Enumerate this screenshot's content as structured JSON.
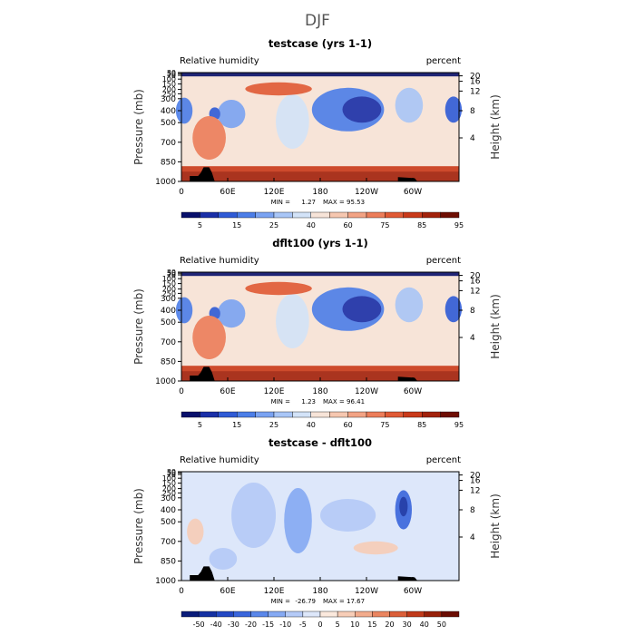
{
  "figure": {
    "title": "DJF"
  },
  "chart_data": [
    {
      "type": "heatmap",
      "title": "testcase (yrs 1-1)",
      "left_label": "Relative humidity",
      "right_label": "percent",
      "ylabel": "Pressure (mb)",
      "ylabel_right": "Height (km)",
      "x_ticks": [
        "0",
        "60E",
        "120E",
        "180",
        "120W",
        "60W"
      ],
      "y_ticks": [
        "30",
        "50",
        "70",
        "100",
        "150",
        "200",
        "250",
        "300",
        "400",
        "500",
        "700",
        "850",
        "1000"
      ],
      "y_ticks_right": [
        "20",
        "16",
        "12",
        "8",
        "4"
      ],
      "stats": {
        "min_label": "MIN =",
        "min": "1.27",
        "max_label": "MAX =",
        "max": "95.53"
      },
      "colorbar": {
        "labels": [
          "5",
          "15",
          "25",
          "40",
          "60",
          "75",
          "85",
          "95"
        ],
        "colors": [
          "#08106b",
          "#1a2fa8",
          "#2f5bd6",
          "#4c7ee8",
          "#7aa3f2",
          "#a9c6f7",
          "#d3e3f8",
          "#f7e4d8",
          "#f6c7b0",
          "#f2a384",
          "#ec7d5a",
          "#e05a35",
          "#c93a1a",
          "#a2220b",
          "#6e0e03"
        ]
      }
    },
    {
      "type": "heatmap",
      "title": "dflt100 (yrs 1-1)",
      "left_label": "Relative humidity",
      "right_label": "percent",
      "ylabel": "Pressure (mb)",
      "ylabel_right": "Height (km)",
      "x_ticks": [
        "0",
        "60E",
        "120E",
        "180",
        "120W",
        "60W"
      ],
      "y_ticks": [
        "30",
        "50",
        "70",
        "100",
        "150",
        "200",
        "250",
        "300",
        "400",
        "500",
        "700",
        "850",
        "1000"
      ],
      "y_ticks_right": [
        "20",
        "16",
        "12",
        "8",
        "4"
      ],
      "stats": {
        "min_label": "MIN =",
        "min": "1.23",
        "max_label": "MAX =",
        "max": "96.41"
      },
      "colorbar": {
        "labels": [
          "5",
          "15",
          "25",
          "40",
          "60",
          "75",
          "85",
          "95"
        ],
        "colors": [
          "#08106b",
          "#1a2fa8",
          "#2f5bd6",
          "#4c7ee8",
          "#7aa3f2",
          "#a9c6f7",
          "#d3e3f8",
          "#f7e4d8",
          "#f6c7b0",
          "#f2a384",
          "#ec7d5a",
          "#e05a35",
          "#c93a1a",
          "#a2220b",
          "#6e0e03"
        ]
      }
    },
    {
      "type": "heatmap",
      "title": "testcase - dflt100",
      "left_label": "Relative humidity",
      "right_label": "percent",
      "ylabel": "Pressure (mb)",
      "ylabel_right": "Height (km)",
      "x_ticks": [
        "0",
        "60E",
        "120E",
        "180",
        "120W",
        "60W"
      ],
      "y_ticks": [
        "30",
        "50",
        "70",
        "100",
        "150",
        "200",
        "250",
        "300",
        "400",
        "500",
        "700",
        "850",
        "1000"
      ],
      "y_ticks_right": [
        "20",
        "16",
        "12",
        "8",
        "4"
      ],
      "stats": {
        "min_label": "MIN =",
        "min": "-26.79",
        "max_label": "MAX =",
        "max": "17.67"
      },
      "colorbar": {
        "labels": [
          "-50",
          "-40",
          "-30",
          "-20",
          "-15",
          "-10",
          "-5",
          "0",
          "5",
          "10",
          "15",
          "20",
          "30",
          "40",
          "50"
        ],
        "colors": [
          "#0a1c7a",
          "#1531a3",
          "#2449c4",
          "#3a66dc",
          "#5a87ea",
          "#85a9f3",
          "#b4caf7",
          "#dde7fa",
          "#fbe9dd",
          "#f7cdb7",
          "#f2ab8c",
          "#ea8560",
          "#db5f39",
          "#c03a1a",
          "#972009",
          "#6b0d02"
        ]
      }
    }
  ]
}
